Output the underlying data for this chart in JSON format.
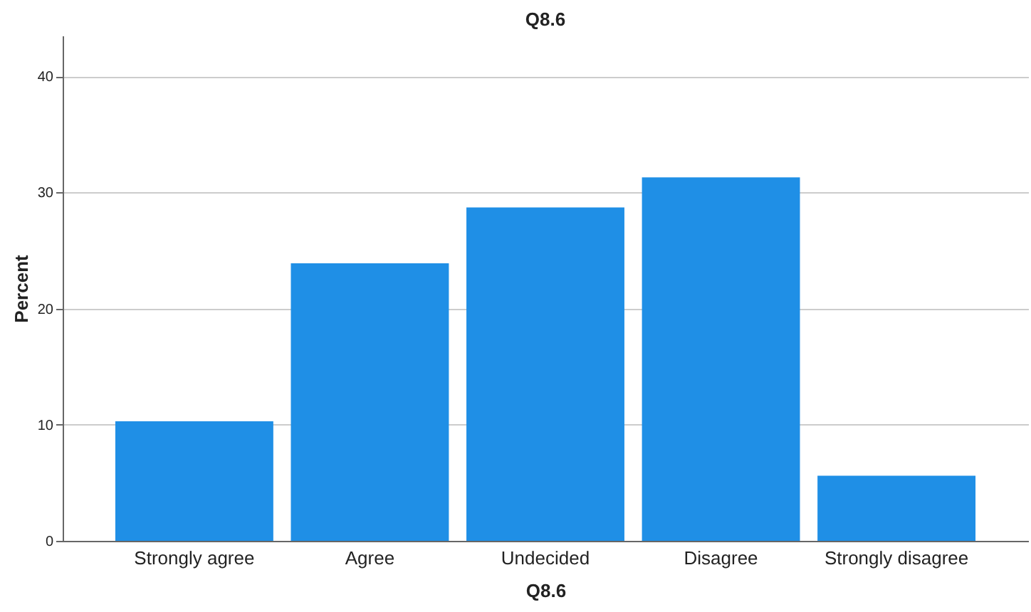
{
  "chart_data": {
    "type": "bar",
    "title": "Q8.6",
    "xlabel": "Q8.6",
    "ylabel": "Percent",
    "categories": [
      "Strongly agree",
      "Agree",
      "Undecided",
      "Disagree",
      "Strongly disagree"
    ],
    "values": [
      10.3,
      23.9,
      28.7,
      31.3,
      5.6
    ],
    "color": "#1f8fe6",
    "ylim": [
      0,
      43.5
    ],
    "yticks": [
      0,
      10,
      20,
      30,
      40
    ],
    "grid": "y"
  }
}
